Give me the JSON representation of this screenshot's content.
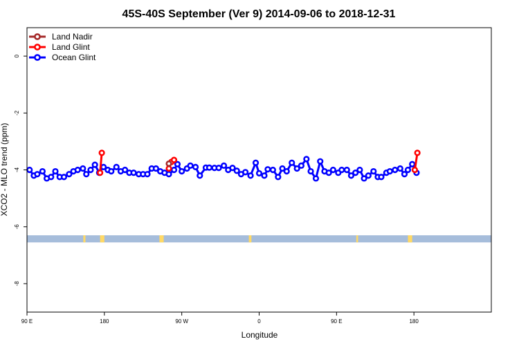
{
  "chart_data": {
    "type": "line",
    "title": "45S-40S September (Ver 9)   2014-09-06 to 2018-12-31",
    "xlabel": "Longitude",
    "ylabel": "XCO2 - MLO trend (ppm)",
    "xlim": [
      -90,
      450
    ],
    "ylim": [
      -9,
      1
    ],
    "x_ticks": [
      {
        "value": -90,
        "label": "90 E"
      },
      {
        "value": 0,
        "label": "180"
      },
      {
        "value": 90,
        "label": "90 W"
      },
      {
        "value": 180,
        "label": "0"
      },
      {
        "value": 270,
        "label": "90 E"
      },
      {
        "value": 360,
        "label": "180"
      }
    ],
    "y_ticks": [
      0,
      -2,
      -4,
      -6,
      -8
    ],
    "legend": {
      "placement": "top-left",
      "entries": [
        {
          "label": "Land Nadir",
          "color": "#a52a2a"
        },
        {
          "label": "Land Glint",
          "color": "#ff0000"
        },
        {
          "label": "Ocean Glint",
          "color": "#0000ff"
        }
      ]
    },
    "land_band": {
      "y_range": [
        -6.55,
        -6.3
      ],
      "ocean_color": "#a6bddb",
      "land_color": "#ffd966",
      "land_x_ranges": [
        [
          -24.5,
          -22
        ],
        [
          -5,
          0
        ],
        [
          64,
          69
        ],
        [
          168,
          171
        ],
        [
          293,
          295
        ],
        [
          353,
          358
        ]
      ]
    },
    "series": [
      {
        "name": "Ocean Glint",
        "color": "#0000ff",
        "x": [
          -87,
          -82,
          -78,
          -72,
          -67,
          -62,
          -57,
          -52,
          -47,
          -41,
          -36,
          -31,
          -25,
          -21,
          -16,
          -11,
          -6,
          -1,
          4,
          8,
          14,
          19,
          24,
          29,
          34,
          40,
          45,
          50,
          55,
          60,
          65,
          70,
          75,
          81,
          85,
          90,
          96,
          100,
          106,
          111,
          118,
          122,
          128,
          133,
          139,
          144,
          149,
          154,
          159,
          164,
          170,
          176,
          180,
          186,
          190,
          196,
          202,
          207,
          212,
          218,
          224,
          229,
          235,
          240,
          246,
          251,
          256,
          261,
          266,
          272,
          276,
          282,
          287,
          292,
          297,
          302,
          307,
          313,
          318,
          322,
          328,
          332,
          338,
          344,
          349,
          353,
          358,
          363
        ],
        "y": [
          -4.0,
          -4.2,
          -4.15,
          -4.05,
          -4.3,
          -4.25,
          -4.05,
          -4.25,
          -4.25,
          -4.15,
          -4.05,
          -4.0,
          -3.95,
          -4.15,
          -4.0,
          -3.82,
          -4.1,
          -3.9,
          -4.0,
          -4.05,
          -3.9,
          -4.05,
          -4.0,
          -4.1,
          -4.1,
          -4.15,
          -4.15,
          -4.15,
          -3.95,
          -3.95,
          -4.05,
          -4.1,
          -4.15,
          -4.0,
          -3.8,
          -4.05,
          -3.95,
          -3.85,
          -3.9,
          -4.2,
          -3.92,
          -3.92,
          -3.93,
          -3.93,
          -3.85,
          -4.0,
          -3.93,
          -4.03,
          -4.15,
          -4.08,
          -4.2,
          -3.75,
          -4.12,
          -4.2,
          -3.98,
          -4.0,
          -4.25,
          -3.95,
          -4.05,
          -3.75,
          -3.95,
          -3.85,
          -3.62,
          -4.05,
          -4.3,
          -3.7,
          -4.05,
          -4.1,
          -4.0,
          -4.1,
          -4.0,
          -4.0,
          -4.2,
          -4.1,
          -4.0,
          -4.3,
          -4.2,
          -4.05,
          -4.25,
          -4.25,
          -4.1,
          -4.05,
          -4.0,
          -3.95,
          -4.15,
          -4.0,
          -3.8,
          -4.1
        ]
      },
      {
        "name": "Land Glint",
        "color": "#ff0000",
        "segments": [
          {
            "x": [
              -5,
              -3
            ],
            "y": [
              -4.1,
              -3.4
            ]
          },
          {
            "x": [
              75,
              78,
              81
            ],
            "y": [
              -3.95,
              -3.72,
              -3.65
            ]
          },
          {
            "x": [
              361,
              364
            ],
            "y": [
              -4.0,
              -3.4
            ]
          }
        ]
      },
      {
        "name": "Land Nadir",
        "color": "#a52a2a",
        "x": [
          75
        ],
        "y": [
          -3.78
        ]
      }
    ]
  }
}
